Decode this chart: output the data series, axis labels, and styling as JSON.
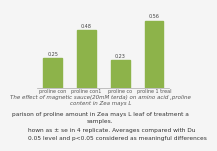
{
  "categories": [
    "proline con",
    "proline con1",
    "proline co",
    "proline 1 treal"
  ],
  "values": [
    0.25,
    0.48,
    0.23,
    0.56
  ],
  "bar_color": "#8db34a",
  "ylim": [
    0,
    0.65
  ],
  "bar_width": 0.55,
  "background_color": "#f5f5f5",
  "value_labels": [
    "0.25",
    "0.48",
    "0.23",
    "0.56"
  ],
  "chart_title": "The effect of magnetic sauce(20mM terda) on amino acid ,proline\ncontent in Zea mays L",
  "fig_caption1": "parison of proline amount in Zea mays L leaf of treatment a",
  "fig_caption2": "samples.",
  "fig_caption3": "hown as ± se in 4 replicate. Averages compared with Du",
  "fig_caption4": "0.05 level and p<0.05 considered as meaningful differences",
  "chart_title_fontsize": 4.0,
  "tick_fontsize": 3.5,
  "caption_fontsize": 4.2
}
